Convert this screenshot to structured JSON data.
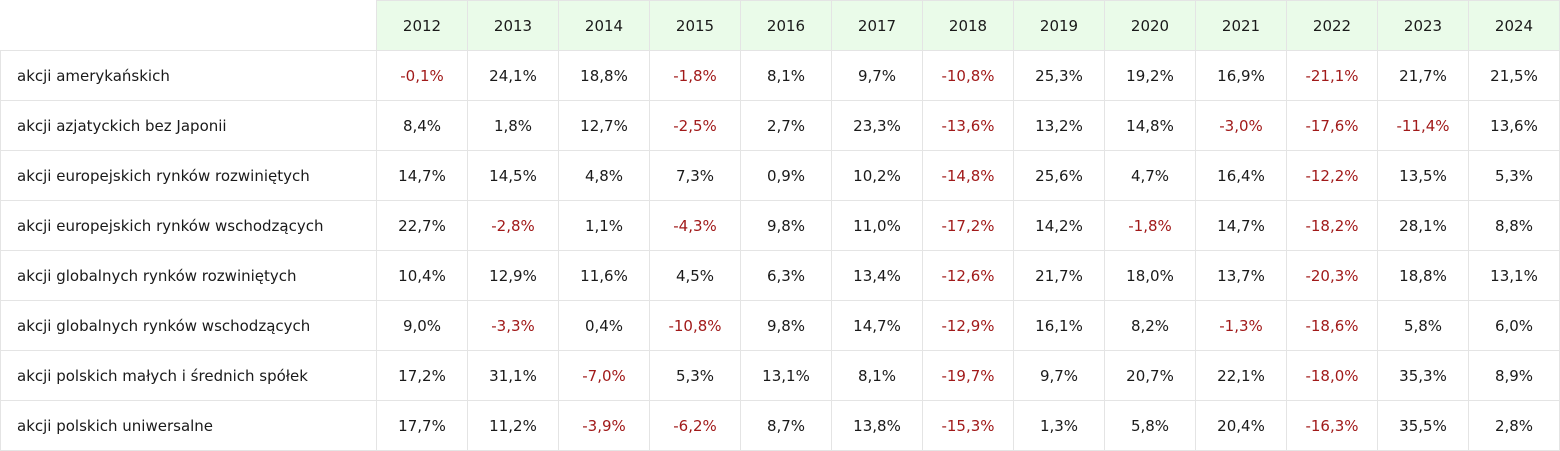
{
  "table": {
    "years": [
      "2012",
      "2013",
      "2014",
      "2015",
      "2016",
      "2017",
      "2018",
      "2019",
      "2020",
      "2021",
      "2022",
      "2023",
      "2024"
    ],
    "colors": {
      "negative": "#a11a1a",
      "positive": "#1a1a1a",
      "header_bg": "#eafbe9"
    },
    "rows": [
      {
        "label": "akcji amerykańskich",
        "values": [
          "-0,1%",
          "24,1%",
          "18,8%",
          "-1,8%",
          "8,1%",
          "9,7%",
          "-10,8%",
          "25,3%",
          "19,2%",
          "16,9%",
          "-21,1%",
          "21,7%",
          "21,5%"
        ]
      },
      {
        "label": "akcji azjatyckich bez Japonii",
        "values": [
          "8,4%",
          "1,8%",
          "12,7%",
          "-2,5%",
          "2,7%",
          "23,3%",
          "-13,6%",
          "13,2%",
          "14,8%",
          "-3,0%",
          "-17,6%",
          "-11,4%",
          "13,6%"
        ]
      },
      {
        "label": "akcji europejskich rynków rozwiniętych",
        "values": [
          "14,7%",
          "14,5%",
          "4,8%",
          "7,3%",
          "0,9%",
          "10,2%",
          "-14,8%",
          "25,6%",
          "4,7%",
          "16,4%",
          "-12,2%",
          "13,5%",
          "5,3%"
        ]
      },
      {
        "label": "akcji europejskich rynków wschodzących",
        "values": [
          "22,7%",
          "-2,8%",
          "1,1%",
          "-4,3%",
          "9,8%",
          "11,0%",
          "-17,2%",
          "14,2%",
          "-1,8%",
          "14,7%",
          "-18,2%",
          "28,1%",
          "8,8%"
        ]
      },
      {
        "label": "akcji globalnych rynków rozwiniętych",
        "values": [
          "10,4%",
          "12,9%",
          "11,6%",
          "4,5%",
          "6,3%",
          "13,4%",
          "-12,6%",
          "21,7%",
          "18,0%",
          "13,7%",
          "-20,3%",
          "18,8%",
          "13,1%"
        ]
      },
      {
        "label": "akcji globalnych rynków wschodzących",
        "values": [
          "9,0%",
          "-3,3%",
          "0,4%",
          "-10,8%",
          "9,8%",
          "14,7%",
          "-12,9%",
          "16,1%",
          "8,2%",
          "-1,3%",
          "-18,6%",
          "5,8%",
          "6,0%"
        ]
      },
      {
        "label": "akcji polskich małych i średnich spółek",
        "values": [
          "17,2%",
          "31,1%",
          "-7,0%",
          "5,3%",
          "13,1%",
          "8,1%",
          "-19,7%",
          "9,7%",
          "20,7%",
          "22,1%",
          "-18,0%",
          "35,3%",
          "8,9%"
        ]
      },
      {
        "label": "akcji polskich uniwersalne",
        "values": [
          "17,7%",
          "11,2%",
          "-3,9%",
          "-6,2%",
          "8,7%",
          "13,8%",
          "-15,3%",
          "1,3%",
          "5,8%",
          "20,4%",
          "-16,3%",
          "35,5%",
          "2,8%"
        ]
      }
    ]
  }
}
